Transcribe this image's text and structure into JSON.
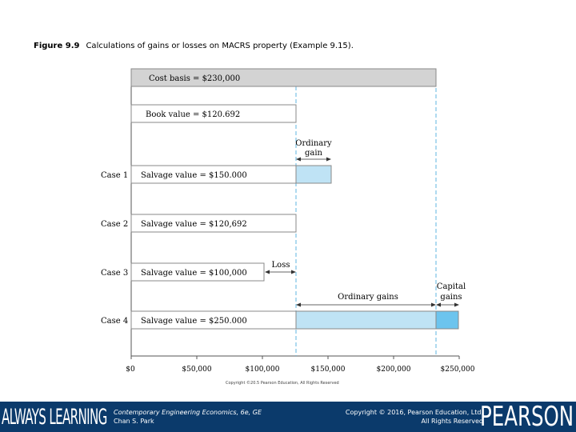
{
  "caption": {
    "figure": "Figure 9.9",
    "text": "Calculations of gains or losses on MACRS property (Example 9.15)."
  },
  "diagram": {
    "cost_basis_label": "Cost basis = $230,000",
    "book_value_label": "Book value = $120.692",
    "ordinary_gain_label": [
      "Ordinary",
      "gain"
    ],
    "loss_label": "Loss",
    "ordinary_gains_label": "Ordinary gains",
    "capital_gains_label": [
      "Capital",
      "gains"
    ],
    "cases": [
      {
        "name": "Case 1",
        "label": "Salvage value = $150.000",
        "value": 150000
      },
      {
        "name": "Case 2",
        "label": "Salvage value = $120,692",
        "value": 120692
      },
      {
        "name": "Case 3",
        "label": "Salvage value = $100,000",
        "value": 100000
      },
      {
        "name": "Case 4",
        "label": "Salvage value = $250.000",
        "value": 250000
      }
    ],
    "axis_ticks": [
      "$0",
      "$50,000",
      "$100,000",
      "$150,000",
      "$200,000",
      "$250,000"
    ],
    "cost_basis": 230000,
    "book_value": 120692
  },
  "copyright_small": "Copyright ©20.5 Pearson Education, All Rights Reserved",
  "footer": {
    "always_learning": "ALWAYS LEARNING",
    "book_title": "Contemporary Engineering Economics, 6e, GE",
    "author": "Chan S. Park",
    "copyright_line1": "Copyright © 2016, Pearson Education, Ltd.",
    "copyright_line2": "All Rights Reserved",
    "pearson": "PEARSON"
  },
  "colors": {
    "gain_fill": "#bfe3f5",
    "capital_fill": "#6cc4ee",
    "cost_bar": "#d3d3d3",
    "guide_line": "#5fb6e0",
    "footer_bg": "#0b3a6b"
  }
}
